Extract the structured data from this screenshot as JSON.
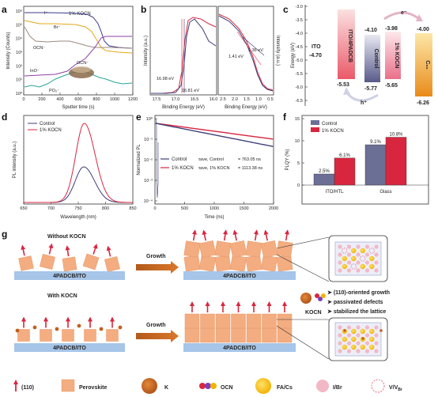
{
  "panels": {
    "a": {
      "letter": "a",
      "tag": "1% KOCN",
      "ylabel": "Intensity (Counts)",
      "xlabel": "Sputter time (s)",
      "xticks": [
        "0",
        "200",
        "400",
        "600",
        "800",
        "1000",
        "1200"
      ],
      "yticks": [
        "10⁰",
        "10¹",
        "10²",
        "10³",
        "10⁴",
        "10⁵",
        "10⁶"
      ],
      "labels": [
        "I⁻",
        "Br⁻",
        "OCN⁻",
        "InO⁻",
        "PO₂⁻",
        "OCN⁻"
      ],
      "colors": [
        "#3a3a8c",
        "#e6a817",
        "#9b8a7e",
        "#8e3fa8",
        "#2aa29a"
      ]
    },
    "b": {
      "letter": "b",
      "ylabel": "Intensity (a.u.)",
      "xlabel_left": "Binding Energy (eV)",
      "xlabel_right": "Binding Energy (eV)",
      "xticks_left": [
        "17.5",
        "17.0",
        "16.5",
        "16.0"
      ],
      "xticks_right": [
        "2.5",
        "2.0",
        "1.5",
        "1.0",
        "0.5"
      ],
      "ann_red_left": "16.98 eV",
      "ann_blue_left": "16.81 eV",
      "ann_red_right": "1.41 eV",
      "ann_blue_right": "1.36 eV"
    },
    "c": {
      "letter": "c",
      "ylabel": "Energy (eV)",
      "yticks": [
        "-3.0",
        "-3.5",
        "-4.0",
        "-4.5",
        "-5.0",
        "-5.5",
        "-6.0",
        "-6.5"
      ],
      "ito_name": "ITO",
      "ito_val": "-4.70",
      "htl_name": "ITO/4PADCB",
      "htl_val": "-5.53",
      "ctrl_name": "Control",
      "ctrl_top": "-4.10",
      "ctrl_bot": "-5.77",
      "koc_name": "1% KOCN",
      "koc_top": "-3.98",
      "koc_bot": "-5.65",
      "c60_name": "C₆₀",
      "c60_top": "-4.00",
      "c60_bot": "-6.26",
      "electron": "e⁻",
      "hole": "h⁺"
    },
    "d": {
      "letter": "d",
      "ylabel": "PL intensity (a.u.)",
      "xlabel": "Wavelength (nm)",
      "xticks": [
        "650",
        "700",
        "750",
        "800",
        "850"
      ],
      "legend": [
        "Control",
        "1% KOCN"
      ]
    },
    "e": {
      "letter": "e",
      "ylabel": "Normalized PL",
      "xlabel": "Time (ns)",
      "xticks": [
        "0",
        "500",
        "1000",
        "1500",
        "2000"
      ],
      "yticks": [
        "10⁰",
        "10⁻¹",
        "10⁻²",
        "10⁻³",
        "10⁻⁴"
      ],
      "legend": [
        "Control",
        "1% KOCN"
      ],
      "tau_ctrl_label": "τave, Control",
      "tau_ctrl_val": "= 763.05 ns",
      "tau_koc_label": "τave, 1% KOCN",
      "tau_koc_val": "= 1113.38 ns"
    },
    "f": {
      "letter": "f",
      "ylabel": "PLQY (%)",
      "yticks": [
        "0",
        "5",
        "10",
        "15"
      ],
      "legend": [
        "Control",
        "1% KOCN"
      ],
      "categories": [
        "ITO/HTL",
        "Glass"
      ]
    },
    "g": {
      "letter": "g",
      "without": "Without KOCN",
      "with": "With KOCN",
      "growth": "Growth",
      "substrate": "4PADCB/ITO",
      "kocn": "KOCN",
      "bullets": [
        "(110)-oriented growth",
        "passivated defects",
        "stabilized the lattice"
      ],
      "legend": [
        "(110)",
        "Perovskite",
        "K",
        "OCN",
        "FA/Cs",
        "I/Br",
        "V/V_Br"
      ],
      "legend_vbr_main": "V/V",
      "legend_vbr_sub": "Br"
    }
  },
  "chart_data": [
    {
      "type": "bar",
      "title": "",
      "ylabel": "PLQY (%)",
      "categories": [
        "ITO/HTL",
        "Glass"
      ],
      "series": [
        {
          "name": "Control",
          "values": [
            2.5,
            9.1
          ],
          "value_labels": [
            "2.5%",
            "9.1%"
          ],
          "color": "#6b6f96"
        },
        {
          "name": "1% KOCN",
          "values": [
            6.1,
            10.8
          ],
          "value_labels": [
            "6.1%",
            "10.8%"
          ],
          "color": "#d9263f"
        }
      ],
      "ylim": [
        0,
        15
      ]
    },
    {
      "type": "line",
      "title": "",
      "xlabel": "Wavelength (nm)",
      "ylabel": "PL intensity (a.u.)",
      "xlim": [
        650,
        850
      ],
      "series": [
        {
          "name": "Control",
          "peak_x": 760,
          "peak_rel": 0.45,
          "color": "#3e3e78"
        },
        {
          "name": "1% KOCN",
          "peak_x": 761,
          "peak_rel": 1.0,
          "color": "#d9263f"
        }
      ]
    },
    {
      "type": "line",
      "title": "",
      "xlabel": "Time (ns)",
      "ylabel": "Normalized PL",
      "xlim": [
        0,
        2000
      ],
      "y_scale": "log",
      "series": [
        {
          "name": "Control",
          "tau_ave_ns": 763.05,
          "color": "#3e3e78"
        },
        {
          "name": "1% KOCN",
          "tau_ave_ns": 1113.38,
          "color": "#d9263f"
        }
      ]
    }
  ]
}
